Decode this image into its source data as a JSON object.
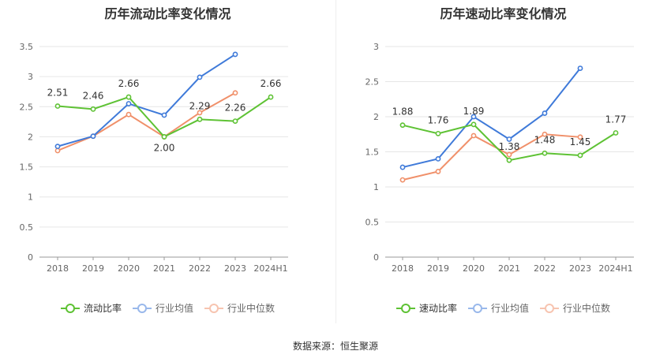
{
  "source": "数据来源：恒生聚源",
  "chart_data": [
    {
      "type": "line",
      "title": "历年流动比率变化情况",
      "categories": [
        "2018",
        "2019",
        "2020",
        "2021",
        "2022",
        "2023",
        "2024H1"
      ],
      "ylim": [
        0,
        3.5
      ],
      "yticks": [
        "0",
        "0.5",
        "1",
        "1.5",
        "2",
        "2.5",
        "3",
        "3.5"
      ],
      "grid": true,
      "legend_position": "bottom",
      "series": [
        {
          "name": "流动比率",
          "color": "#5ec234",
          "values": [
            2.51,
            2.46,
            2.66,
            2.0,
            2.29,
            2.26,
            2.66
          ],
          "labels": [
            "2.51",
            "2.46",
            "2.66",
            "2.00",
            "2.29",
            "2.26",
            "2.66"
          ]
        },
        {
          "name": "行业均值",
          "color": "#3f7ad9",
          "values": [
            1.84,
            2.01,
            2.55,
            2.36,
            2.99,
            3.37,
            null
          ]
        },
        {
          "name": "行业中位数",
          "color": "#f0906a",
          "values": [
            1.77,
            2.01,
            2.37,
            2.0,
            2.4,
            2.73,
            null
          ]
        }
      ]
    },
    {
      "type": "line",
      "title": "历年速动比率变化情况",
      "categories": [
        "2018",
        "2019",
        "2020",
        "2021",
        "2022",
        "2023",
        "2024H1"
      ],
      "ylim": [
        0,
        3
      ],
      "yticks": [
        "0",
        "0.5",
        "1",
        "1.5",
        "2",
        "2.5",
        "3"
      ],
      "grid": true,
      "legend_position": "bottom",
      "series": [
        {
          "name": "速动比率",
          "color": "#5ec234",
          "values": [
            1.88,
            1.76,
            1.89,
            1.38,
            1.48,
            1.45,
            1.77
          ],
          "labels": [
            "1.88",
            "1.76",
            "1.89",
            "1.38",
            "1.48",
            "1.45",
            "1.77"
          ]
        },
        {
          "name": "行业均值",
          "color": "#3f7ad9",
          "values": [
            1.28,
            1.4,
            2.0,
            1.68,
            2.05,
            2.69,
            null
          ]
        },
        {
          "name": "行业中位数",
          "color": "#f0906a",
          "values": [
            1.1,
            1.22,
            1.73,
            1.46,
            1.75,
            1.71,
            null
          ]
        }
      ]
    }
  ]
}
